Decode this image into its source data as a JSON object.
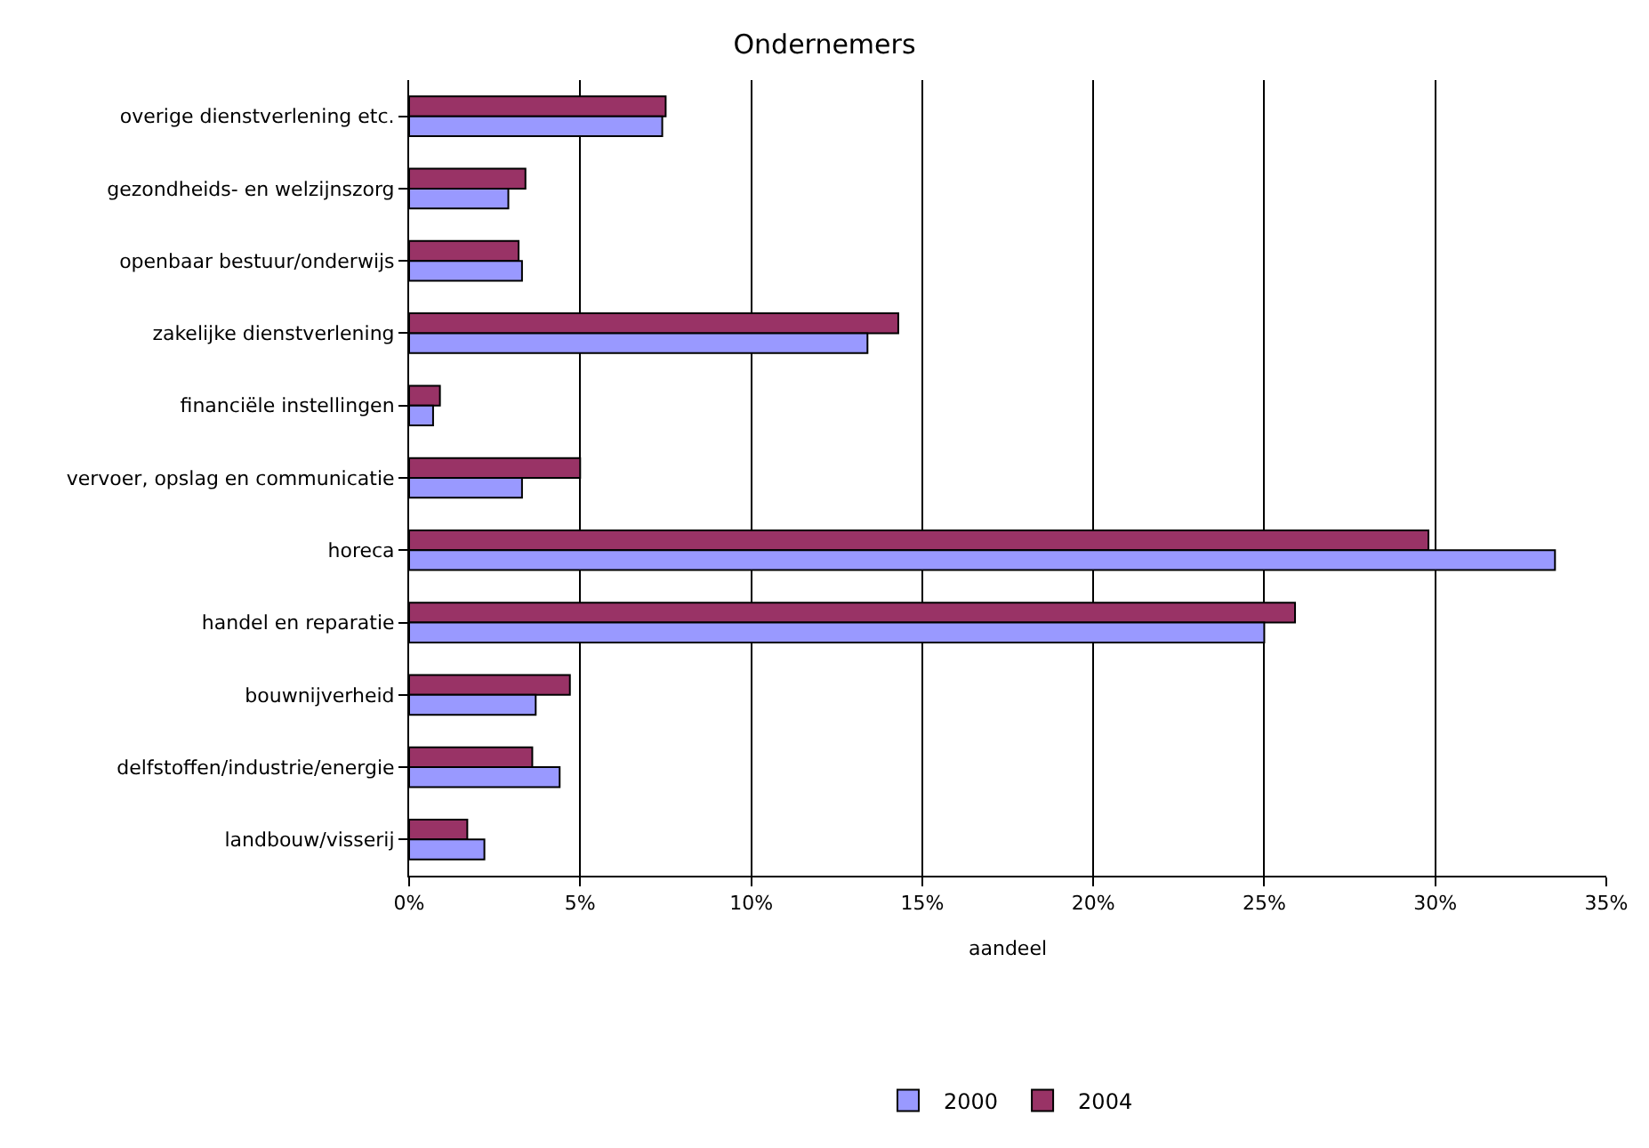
{
  "chart_data": {
    "type": "bar",
    "orientation": "horizontal",
    "title": "Ondernemers",
    "xlabel": "aandeel",
    "categories": [
      "overige dienstverlening etc.",
      "gezondheids- en welzijnszorg",
      "openbaar bestuur/onderwijs",
      "zakelijke dienstverlening",
      "financiële instellingen",
      "vervoer, opslag en communicatie",
      "horeca",
      "handel en reparatie",
      "bouwnijverheid",
      "delfstoffen/industrie/energie",
      "landbouw/visserij"
    ],
    "series": [
      {
        "name": "2000",
        "color": "#9999ff",
        "values": [
          7.4,
          2.9,
          3.3,
          13.4,
          0.7,
          3.3,
          33.5,
          25.0,
          3.7,
          4.4,
          2.2
        ]
      },
      {
        "name": "2004",
        "color": "#993366",
        "values": [
          7.5,
          3.4,
          3.2,
          14.3,
          0.9,
          5.0,
          29.8,
          25.9,
          4.7,
          3.6,
          1.7
        ]
      }
    ],
    "xlim": [
      0,
      35
    ],
    "xticks": [
      {
        "value": 0,
        "label": "0%"
      },
      {
        "value": 5,
        "label": "5%"
      },
      {
        "value": 10,
        "label": "10%"
      },
      {
        "value": 15,
        "label": "15%"
      },
      {
        "value": 20,
        "label": "20%"
      },
      {
        "value": 25,
        "label": "25%"
      },
      {
        "value": 30,
        "label": "30%"
      },
      {
        "value": 35,
        "label": "35%"
      }
    ],
    "grid": "x",
    "legend": "bottom"
  }
}
